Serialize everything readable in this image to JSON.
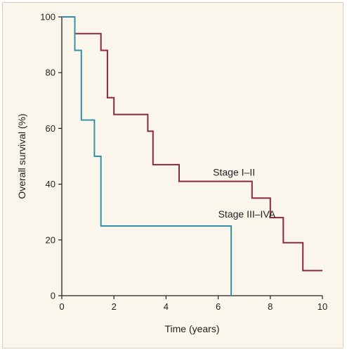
{
  "chart_data": {
    "type": "line",
    "step": true,
    "title": "",
    "xlabel": "Time (years)",
    "ylabel": "Overall survival (%)",
    "xlim": [
      0,
      10
    ],
    "ylim": [
      0,
      100
    ],
    "xticks": [
      0,
      2,
      4,
      6,
      8,
      10
    ],
    "yticks": [
      0,
      20,
      40,
      60,
      80,
      100
    ],
    "grid": false,
    "series": [
      {
        "name": "Stage I–II",
        "color": "#8b2a3a",
        "points": [
          [
            0,
            100
          ],
          [
            0.5,
            100
          ],
          [
            0.5,
            94
          ],
          [
            1.5,
            94
          ],
          [
            1.5,
            88
          ],
          [
            1.75,
            88
          ],
          [
            1.75,
            71
          ],
          [
            2.0,
            71
          ],
          [
            2.0,
            65
          ],
          [
            3.3,
            65
          ],
          [
            3.3,
            59
          ],
          [
            3.5,
            59
          ],
          [
            3.5,
            47
          ],
          [
            4.5,
            47
          ],
          [
            4.5,
            41
          ],
          [
            7.3,
            41
          ],
          [
            7.3,
            35
          ],
          [
            8.0,
            35
          ],
          [
            8.0,
            28
          ],
          [
            8.5,
            28
          ],
          [
            8.5,
            19
          ],
          [
            9.25,
            19
          ],
          [
            9.25,
            9
          ],
          [
            10,
            9
          ]
        ],
        "label_position": [
          5.8,
          43
        ]
      },
      {
        "name": "Stage III–IVA",
        "color": "#3591a8",
        "points": [
          [
            0,
            100
          ],
          [
            0.5,
            100
          ],
          [
            0.5,
            88
          ],
          [
            0.75,
            88
          ],
          [
            0.75,
            63
          ],
          [
            1.25,
            63
          ],
          [
            1.25,
            50
          ],
          [
            1.5,
            50
          ],
          [
            1.5,
            25
          ],
          [
            6.5,
            25
          ],
          [
            6.5,
            0
          ]
        ],
        "label_position": [
          6.0,
          28
        ]
      }
    ]
  }
}
